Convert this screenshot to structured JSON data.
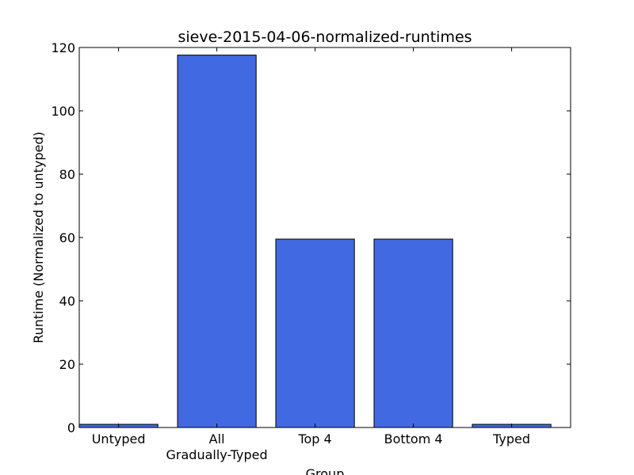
{
  "chart_data": {
    "type": "bar",
    "title": "sieve-2015-04-06-normalized-runtimes",
    "xlabel": "Group",
    "ylabel": "Runtime (Normalized to untyped)",
    "categories": [
      "Untyped",
      "All\nGradually-Typed",
      "Top 4",
      "Bottom 4",
      "Typed"
    ],
    "values": [
      1.0,
      117.6,
      59.5,
      59.5,
      1.0
    ],
    "ylim": [
      0,
      120
    ],
    "yticks": [
      0,
      20,
      40,
      60,
      80,
      100,
      120
    ],
    "grid": false,
    "bar_color": "#4169e1",
    "edge_color": "#000000"
  }
}
